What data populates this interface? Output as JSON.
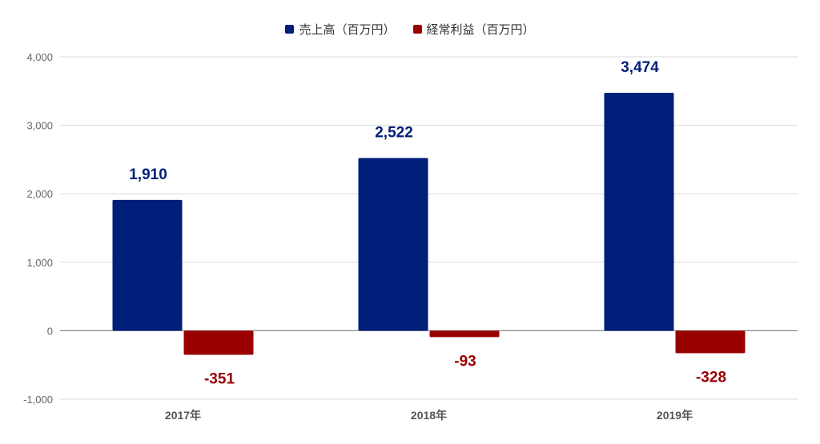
{
  "chart_data": {
    "type": "bar",
    "categories": [
      "2017年",
      "2018年",
      "2019年"
    ],
    "series": [
      {
        "name": "売上高（百万円）",
        "color": "#001f7a",
        "values": [
          1910,
          2522,
          3474
        ],
        "labels": [
          "1,910",
          "2,522",
          "3,474"
        ]
      },
      {
        "name": "経常利益（百万円）",
        "color": "#990000",
        "values": [
          -351,
          -93,
          -328
        ],
        "labels": [
          "-351",
          "-93",
          "-328"
        ]
      }
    ],
    "ylim": [
      -1000,
      4000
    ],
    "yticks": [
      4000,
      3000,
      2000,
      1000,
      0,
      -1000
    ],
    "ytick_labels": [
      "4,000",
      "3,000",
      "2,000",
      "1,000",
      "0",
      "-1,000"
    ],
    "legend_position": "top-center",
    "grid": true,
    "title": "",
    "xlabel": "",
    "ylabel": ""
  }
}
